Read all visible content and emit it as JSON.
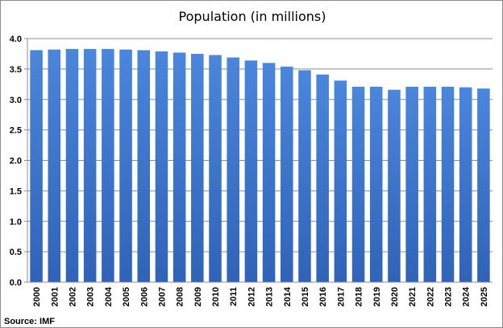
{
  "chart_data": {
    "type": "bar",
    "title": "Population (in millions)",
    "xlabel": "",
    "ylabel": "",
    "source": "Source: IMF",
    "ylim": [
      0,
      4.0
    ],
    "yticks": [
      "0.0",
      "0.5",
      "1.0",
      "1.5",
      "2.0",
      "2.5",
      "3.0",
      "3.5",
      "4.0"
    ],
    "grid": true,
    "legend": "none",
    "bar_color": "#3d78d0",
    "categories": [
      "2000",
      "2001",
      "2002",
      "2003",
      "2004",
      "2005",
      "2006",
      "2007",
      "2008",
      "2009",
      "2010",
      "2011",
      "2012",
      "2013",
      "2014",
      "2015",
      "2016",
      "2017",
      "2018",
      "2019",
      "2020",
      "2021",
      "2022",
      "2023",
      "2024",
      "2025"
    ],
    "values": [
      3.81,
      3.82,
      3.83,
      3.83,
      3.83,
      3.82,
      3.81,
      3.79,
      3.77,
      3.75,
      3.73,
      3.69,
      3.64,
      3.6,
      3.54,
      3.48,
      3.41,
      3.31,
      3.21,
      3.21,
      3.16,
      3.21,
      3.21,
      3.21,
      3.2,
      3.18
    ]
  }
}
